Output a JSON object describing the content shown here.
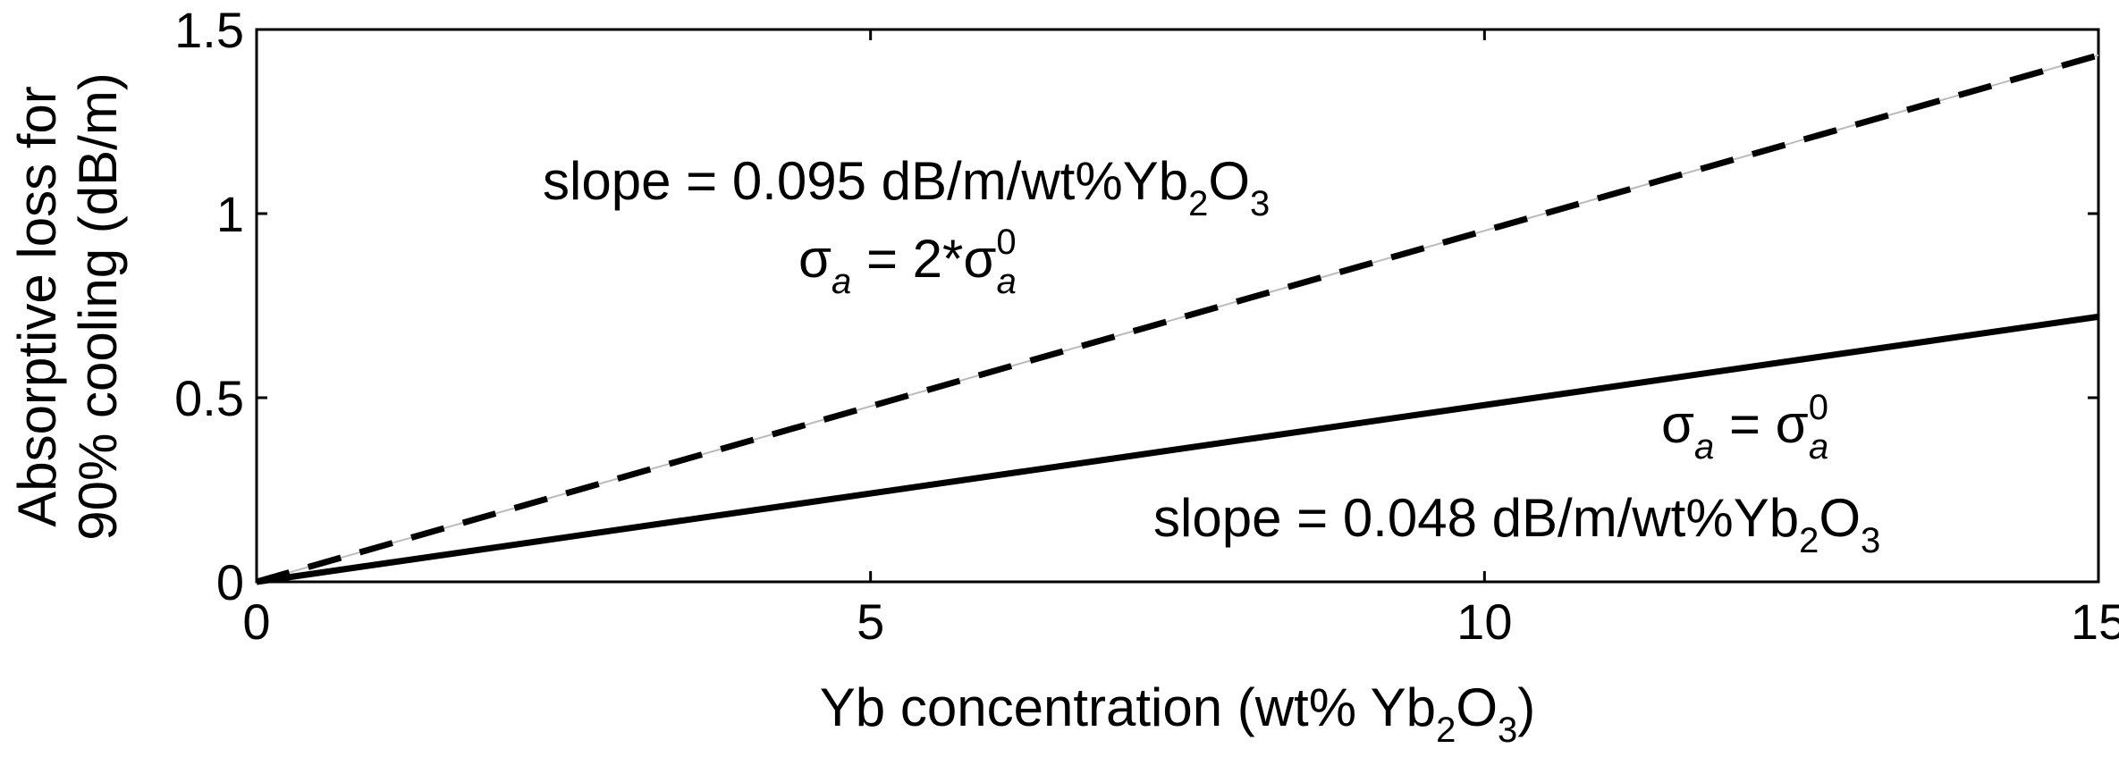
{
  "chart_data": {
    "type": "line",
    "xlabel": {
      "main": "Yb concentration (wt% Yb",
      "sub1": "2",
      "mid": "O",
      "sub2": "3",
      "close": ")"
    },
    "ylabel": {
      "line1": "Absorptive loss for",
      "line2": "90% cooling (dB/m)"
    },
    "xlim": [
      0,
      15
    ],
    "ylim": [
      0,
      1.5
    ],
    "x_ticks": [
      0,
      5,
      10,
      15
    ],
    "x_tick_labels": [
      "0",
      "5",
      "10",
      "15"
    ],
    "y_ticks": [
      0,
      0.5,
      1,
      1.5
    ],
    "y_tick_labels": [
      "0",
      "0.5",
      "1",
      "1.5"
    ],
    "grid": false,
    "series": [
      {
        "x": [
          0,
          15
        ],
        "y": [
          0,
          1.43
        ],
        "style": "dashed",
        "color": "#000000"
      },
      {
        "x": [
          0,
          15
        ],
        "y": [
          0,
          0.72
        ],
        "style": "solid",
        "color": "#000000"
      }
    ],
    "annotations": {
      "dashed_slope": {
        "text": "slope = 0.095 dB/m/wt%Yb",
        "sub1": "2",
        "mid": "O",
        "sub2": "3"
      },
      "dashed_sigma": {
        "sigma": "σ",
        "sub": "a",
        "eq": " = 2*σ",
        "sub2": "a",
        "sup": "0"
      },
      "solid_sigma": {
        "sigma": "σ",
        "sub": "a",
        "eq": " = σ",
        "sub2": "a",
        "sup": "0"
      },
      "solid_slope": {
        "text": "slope = 0.048 dB/m/wt%Yb",
        "sub1": "2",
        "mid": "O",
        "sub2": "3"
      }
    }
  }
}
